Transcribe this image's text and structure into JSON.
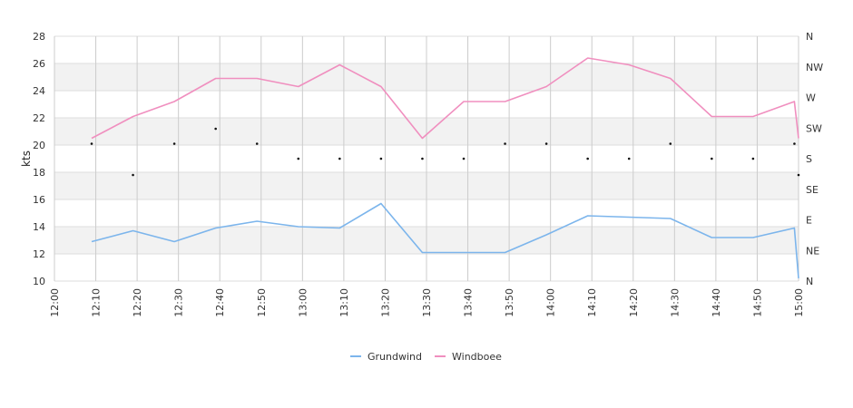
{
  "chart_data": {
    "type": "line",
    "x": [
      "12:00",
      "12:10",
      "12:20",
      "12:30",
      "12:40",
      "12:50",
      "13:00",
      "13:10",
      "13:20",
      "13:30",
      "13:40",
      "13:50",
      "14:00",
      "14:10",
      "14:20",
      "14:30",
      "14:40",
      "14:50",
      "15:00"
    ],
    "ylabel": "kts",
    "ylim": [
      10,
      28
    ],
    "yticks": [
      10,
      12,
      14,
      16,
      18,
      20,
      22,
      24,
      26,
      28
    ],
    "y2_labels": [
      "N",
      "NE",
      "E",
      "SE",
      "S",
      "SW",
      "W",
      "NW",
      "N"
    ],
    "grid": true,
    "legend_position": "bottom",
    "series": [
      {
        "name": "Grundwind",
        "color": "#7cb5ec",
        "x": [
          0.9,
          1.9,
          2.9,
          3.9,
          4.9,
          5.9,
          6.9,
          7.9,
          8.9,
          9.9,
          10.9,
          11.9,
          12.9,
          13.9,
          14.9,
          15.9,
          16.9,
          17.9,
          18.0
        ],
        "values": [
          12.9,
          13.7,
          12.9,
          13.9,
          14.4,
          14.0,
          13.9,
          15.7,
          12.1,
          12.1,
          12.1,
          13.4,
          14.8,
          14.7,
          14.6,
          13.2,
          13.2,
          13.9,
          10.2
        ]
      },
      {
        "name": "Windboee",
        "color": "#f08fbf",
        "x": [
          0.9,
          1.9,
          2.9,
          3.9,
          4.9,
          5.9,
          6.9,
          7.9,
          8.9,
          9.9,
          10.9,
          11.9,
          12.9,
          13.9,
          14.9,
          15.9,
          16.9,
          17.9,
          18.0
        ],
        "values": [
          20.5,
          22.1,
          23.2,
          24.9,
          24.9,
          24.3,
          25.9,
          24.3,
          20.5,
          23.2,
          23.2,
          24.3,
          26.4,
          25.9,
          24.9,
          22.1,
          22.1,
          23.2,
          20.5
        ]
      }
    ],
    "direction_points": {
      "x": [
        0.9,
        1.9,
        2.9,
        3.9,
        4.9,
        5.9,
        6.9,
        7.9,
        8.9,
        9.9,
        10.9,
        11.9,
        12.9,
        13.9,
        14.9,
        15.9,
        16.9,
        17.9,
        18.0
      ],
      "values": [
        20.1,
        17.8,
        20.1,
        21.2,
        20.1,
        19.0,
        19.0,
        19.0,
        19.0,
        19.0,
        20.1,
        20.1,
        19.0,
        19.0,
        20.1,
        19.0,
        19.0,
        20.1,
        17.8
      ]
    }
  }
}
